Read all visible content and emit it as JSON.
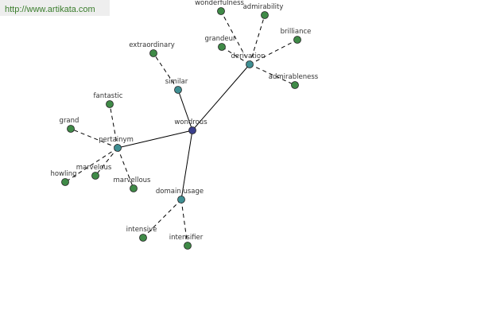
{
  "header": {
    "url": "http://www.artikata.com"
  },
  "nodes": [
    {
      "label": "wondrous"
    },
    {
      "label": "similar"
    },
    {
      "label": "extraordinary"
    },
    {
      "label": "derivation"
    },
    {
      "label": "wonderfulness"
    },
    {
      "label": "admirability"
    },
    {
      "label": "grandeur"
    },
    {
      "label": "brilliance"
    },
    {
      "label": "admirableness"
    },
    {
      "label": "pertainym"
    },
    {
      "label": "fantastic"
    },
    {
      "label": "grand"
    },
    {
      "label": "howling"
    },
    {
      "label": "marvelous"
    },
    {
      "label": "marvellous"
    },
    {
      "label": "domain usage"
    },
    {
      "label": "intensive"
    },
    {
      "label": "intensifier"
    }
  ]
}
